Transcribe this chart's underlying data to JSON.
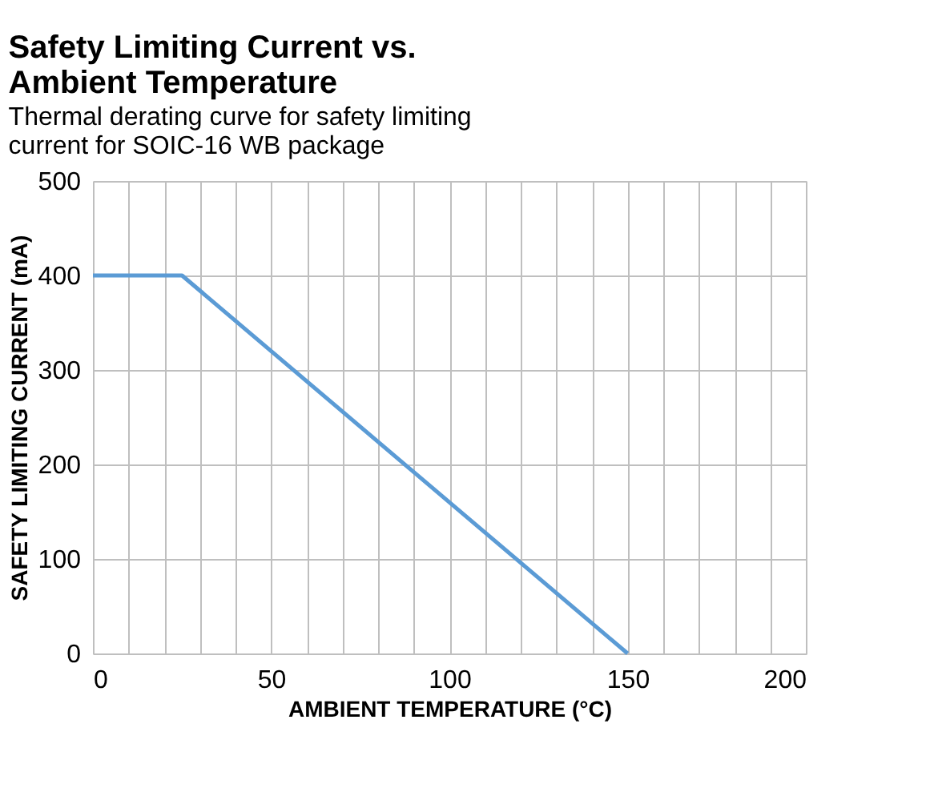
{
  "chart_data": {
    "type": "line",
    "title": "Safety Limiting Current vs. Ambient Temperature",
    "subtitle": "Thermal derating curve for safety limiting current for SOIC-16 WB package",
    "xlabel": "AMBIENT TEMPERATURE (°C)",
    "ylabel": "SAFETY LIMITING CURRENT (mA)",
    "x": [
      0,
      25,
      150
    ],
    "series": [
      {
        "color": "#5b9bd5",
        "values": [
          400,
          400,
          0
        ]
      }
    ],
    "xlim": [
      0,
      200
    ],
    "ylim": [
      0,
      500
    ],
    "xticks": [
      0,
      {
        "value": 10,
        "label": null
      },
      {
        "value": 20,
        "label": null
      },
      {
        "value": 30,
        "label": null
      },
      {
        "value": 40,
        "label": null
      },
      50,
      {
        "value": 60,
        "label": null
      },
      {
        "value": 70,
        "label": null
      },
      {
        "value": 80,
        "label": null
      },
      {
        "value": 90,
        "label": null
      },
      100,
      {
        "value": 110,
        "label": null
      },
      {
        "value": 120,
        "label": null
      },
      {
        "value": 130,
        "label": null
      },
      {
        "value": 140,
        "label": null
      },
      150,
      {
        "value": 160,
        "label": null
      },
      {
        "value": 170,
        "label": null
      },
      {
        "value": 180,
        "label": null
      },
      {
        "value": 190,
        "label": null
      },
      200
    ],
    "yticks": [
      0,
      100,
      200,
      300,
      400,
      500
    ],
    "grid": true,
    "marker": "none",
    "line_style": "solid"
  }
}
